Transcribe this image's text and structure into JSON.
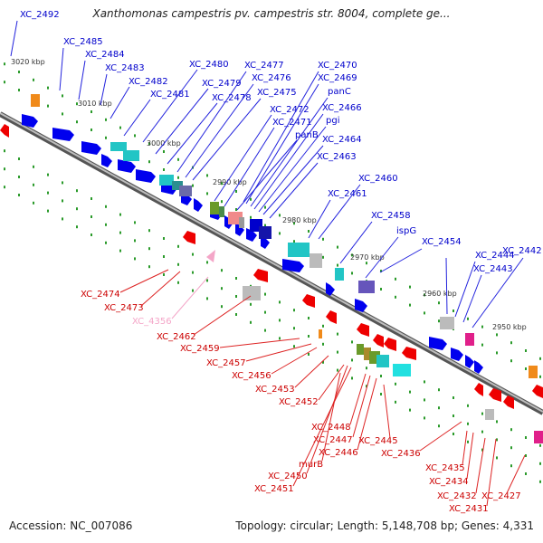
{
  "title": "Xanthomonas campestris pv. campestris str. 8004, complete ge...",
  "footer": {
    "accession": "Accession: NC_007086",
    "summary": "Topology: circular; Length: 5,148,708 bp; Genes: 4,331"
  },
  "colors": {
    "forward_label": "#0000cc",
    "reverse_label": "#cc0000",
    "pink_label": "#f4a6c8",
    "backbone": "#8c8c8c",
    "tick": "#2a9a2a"
  },
  "scale_labels": [
    "3020 kbp",
    "3010 kbp",
    "3000 kbp",
    "2990 kbp",
    "2980 kbp",
    "2970 kbp",
    "2960 kbp",
    "2950 kbp"
  ],
  "forward_labels": [
    "XC_2492",
    "XC_2485",
    "XC_2484",
    "XC_2483",
    "XC_2482",
    "XC_2481",
    "XC_2480",
    "XC_2479",
    "XC_2478",
    "XC_2477",
    "XC_2476",
    "XC_2475",
    "XC_2472",
    "XC_2471",
    "panB",
    "XC_2470",
    "XC_2469",
    "panC",
    "XC_2466",
    "pgi",
    "XC_2464",
    "XC_2463",
    "XC_2461",
    "XC_2460",
    "XC_2458",
    "ispG",
    "XC_2454",
    "XC_2444",
    "XC_2443",
    "XC_2442"
  ],
  "reverse_labels": [
    "XC_2474",
    "XC_2473",
    "XC_4356",
    "XC_2462",
    "XC_2459",
    "XC_2457",
    "XC_2456",
    "XC_2453",
    "XC_2452",
    "XC_2448",
    "XC_2447",
    "XC_2446",
    "murB",
    "XC_2450",
    "XC_2451",
    "XC_2445",
    "XC_2436",
    "XC_2435",
    "XC_2434",
    "XC_2432",
    "XC_2431",
    "XC_2427"
  ]
}
